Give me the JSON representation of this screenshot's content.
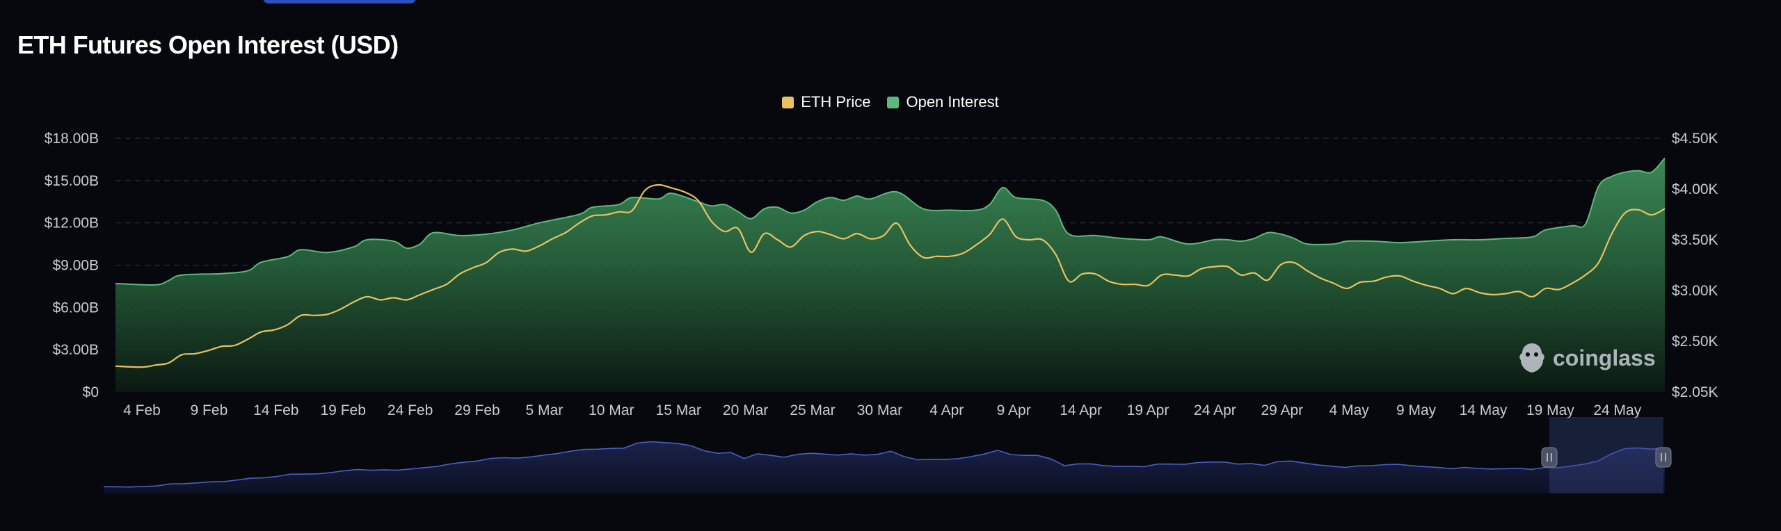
{
  "title": "ETH Futures Open Interest (USD)",
  "watermark": "coinglass",
  "colors": {
    "background": "#06080d",
    "eth_price": "#e8c261",
    "open_interest": "#5cb87d",
    "navigator": "#4a5fc4",
    "grid": "#2a2e38"
  },
  "chart_data": {
    "type": "area",
    "title": "ETH Futures Open Interest (USD)",
    "legend_position": "top-center",
    "grid": true,
    "x_ticks": [
      "4 Feb",
      "9 Feb",
      "14 Feb",
      "19 Feb",
      "24 Feb",
      "29 Feb",
      "5 Mar",
      "10 Mar",
      "15 Mar",
      "20 Mar",
      "25 Mar",
      "30 Mar",
      "4 Apr",
      "9 Apr",
      "14 Apr",
      "19 Apr",
      "24 Apr",
      "29 Apr",
      "4 May",
      "9 May",
      "14 May",
      "19 May",
      "24 May"
    ],
    "y_left": {
      "ticks": [
        "$0",
        "$3.00B",
        "$6.00B",
        "$9.00B",
        "$12.00B",
        "$15.00B",
        "$18.00B"
      ],
      "range": [
        0,
        18
      ]
    },
    "y_right": {
      "ticks": [
        "$2.05K",
        "$2.50K",
        "$3.00K",
        "$3.50K",
        "$4.00K",
        "$4.50K"
      ],
      "range": [
        2050,
        4500
      ]
    },
    "x_range_days": [
      0,
      117
    ],
    "series": [
      {
        "name": "Open Interest",
        "axis": "left",
        "unit": "B USD",
        "points": [
          [
            0,
            7.7
          ],
          [
            3,
            7.6
          ],
          [
            4,
            7.9
          ],
          [
            5,
            8.3
          ],
          [
            8,
            8.4
          ],
          [
            10,
            8.6
          ],
          [
            11,
            9.2
          ],
          [
            13,
            9.6
          ],
          [
            14,
            10.1
          ],
          [
            16,
            9.9
          ],
          [
            18,
            10.3
          ],
          [
            19,
            10.8
          ],
          [
            21,
            10.7
          ],
          [
            22,
            10.2
          ],
          [
            23,
            10.5
          ],
          [
            24,
            11.3
          ],
          [
            26,
            11.1
          ],
          [
            28,
            11.2
          ],
          [
            30,
            11.5
          ],
          [
            32,
            12.0
          ],
          [
            35,
            12.6
          ],
          [
            36,
            13.1
          ],
          [
            38,
            13.3
          ],
          [
            39,
            13.8
          ],
          [
            41,
            13.7
          ],
          [
            42,
            14.1
          ],
          [
            44,
            13.5
          ],
          [
            45,
            13.2
          ],
          [
            46,
            13.3
          ],
          [
            47,
            12.8
          ],
          [
            48,
            12.3
          ],
          [
            49,
            13.0
          ],
          [
            50,
            13.1
          ],
          [
            51,
            12.7
          ],
          [
            52,
            12.9
          ],
          [
            53,
            13.5
          ],
          [
            54,
            13.8
          ],
          [
            55,
            13.6
          ],
          [
            56,
            13.9
          ],
          [
            57,
            13.7
          ],
          [
            59,
            14.2
          ],
          [
            61,
            13.0
          ],
          [
            63,
            12.9
          ],
          [
            65,
            12.9
          ],
          [
            66,
            13.3
          ],
          [
            67,
            14.5
          ],
          [
            68,
            13.8
          ],
          [
            70,
            13.6
          ],
          [
            71,
            12.9
          ],
          [
            72,
            11.2
          ],
          [
            74,
            11.1
          ],
          [
            76,
            10.9
          ],
          [
            78,
            10.8
          ],
          [
            79,
            11.0
          ],
          [
            81,
            10.5
          ],
          [
            83,
            10.8
          ],
          [
            84,
            10.8
          ],
          [
            85,
            10.7
          ],
          [
            86,
            10.9
          ],
          [
            87,
            11.3
          ],
          [
            88,
            11.2
          ],
          [
            89,
            10.9
          ],
          [
            90,
            10.5
          ],
          [
            92,
            10.5
          ],
          [
            93,
            10.7
          ],
          [
            95,
            10.7
          ],
          [
            97,
            10.6
          ],
          [
            99,
            10.7
          ],
          [
            101,
            10.8
          ],
          [
            103,
            10.8
          ],
          [
            105,
            10.9
          ],
          [
            107,
            11.0
          ],
          [
            108,
            11.5
          ],
          [
            110,
            11.8
          ],
          [
            111,
            11.9
          ],
          [
            112,
            14.6
          ],
          [
            113,
            15.3
          ],
          [
            114,
            15.6
          ],
          [
            115,
            15.7
          ],
          [
            116,
            15.6
          ],
          [
            117,
            16.6
          ]
        ]
      },
      {
        "name": "ETH Price",
        "axis": "right",
        "unit": "USD",
        "points": [
          [
            0,
            2300
          ],
          [
            2,
            2290
          ],
          [
            3,
            2310
          ],
          [
            4,
            2330
          ],
          [
            5,
            2410
          ],
          [
            6,
            2420
          ],
          [
            7,
            2450
          ],
          [
            8,
            2490
          ],
          [
            9,
            2500
          ],
          [
            10,
            2560
          ],
          [
            11,
            2630
          ],
          [
            12,
            2650
          ],
          [
            13,
            2700
          ],
          [
            14,
            2790
          ],
          [
            15,
            2790
          ],
          [
            16,
            2800
          ],
          [
            17,
            2850
          ],
          [
            18,
            2920
          ],
          [
            19,
            2970
          ],
          [
            20,
            2940
          ],
          [
            21,
            2960
          ],
          [
            22,
            2940
          ],
          [
            23,
            2990
          ],
          [
            24,
            3040
          ],
          [
            25,
            3090
          ],
          [
            26,
            3190
          ],
          [
            27,
            3250
          ],
          [
            28,
            3300
          ],
          [
            29,
            3400
          ],
          [
            30,
            3430
          ],
          [
            31,
            3410
          ],
          [
            32,
            3460
          ],
          [
            33,
            3530
          ],
          [
            34,
            3590
          ],
          [
            35,
            3680
          ],
          [
            36,
            3750
          ],
          [
            37,
            3760
          ],
          [
            38,
            3790
          ],
          [
            39,
            3800
          ],
          [
            40,
            4000
          ],
          [
            41,
            4050
          ],
          [
            42,
            4020
          ],
          [
            43,
            3980
          ],
          [
            44,
            3900
          ],
          [
            45,
            3700
          ],
          [
            46,
            3600
          ],
          [
            47,
            3630
          ],
          [
            48,
            3400
          ],
          [
            49,
            3580
          ],
          [
            50,
            3520
          ],
          [
            51,
            3450
          ],
          [
            52,
            3560
          ],
          [
            53,
            3600
          ],
          [
            54,
            3570
          ],
          [
            55,
            3530
          ],
          [
            56,
            3580
          ],
          [
            57,
            3530
          ],
          [
            58,
            3560
          ],
          [
            59,
            3680
          ],
          [
            60,
            3470
          ],
          [
            61,
            3350
          ],
          [
            62,
            3360
          ],
          [
            63,
            3360
          ],
          [
            64,
            3390
          ],
          [
            65,
            3470
          ],
          [
            66,
            3570
          ],
          [
            67,
            3720
          ],
          [
            68,
            3550
          ],
          [
            69,
            3520
          ],
          [
            70,
            3520
          ],
          [
            71,
            3380
          ],
          [
            72,
            3120
          ],
          [
            73,
            3190
          ],
          [
            74,
            3190
          ],
          [
            75,
            3120
          ],
          [
            76,
            3090
          ],
          [
            77,
            3090
          ],
          [
            78,
            3080
          ],
          [
            79,
            3180
          ],
          [
            80,
            3180
          ],
          [
            81,
            3170
          ],
          [
            82,
            3240
          ],
          [
            83,
            3260
          ],
          [
            84,
            3260
          ],
          [
            85,
            3180
          ],
          [
            86,
            3200
          ],
          [
            87,
            3130
          ],
          [
            88,
            3280
          ],
          [
            89,
            3300
          ],
          [
            90,
            3220
          ],
          [
            91,
            3150
          ],
          [
            92,
            3100
          ],
          [
            93,
            3050
          ],
          [
            94,
            3110
          ],
          [
            95,
            3120
          ],
          [
            96,
            3160
          ],
          [
            97,
            3170
          ],
          [
            98,
            3120
          ],
          [
            99,
            3080
          ],
          [
            100,
            3050
          ],
          [
            101,
            3000
          ],
          [
            102,
            3050
          ],
          [
            103,
            3010
          ],
          [
            104,
            2990
          ],
          [
            105,
            3000
          ],
          [
            106,
            3020
          ],
          [
            107,
            2970
          ],
          [
            108,
            3050
          ],
          [
            109,
            3040
          ],
          [
            110,
            3100
          ],
          [
            111,
            3180
          ],
          [
            112,
            3300
          ],
          [
            113,
            3580
          ],
          [
            114,
            3780
          ],
          [
            115,
            3810
          ],
          [
            116,
            3760
          ],
          [
            117,
            3820
          ]
        ]
      }
    ]
  }
}
